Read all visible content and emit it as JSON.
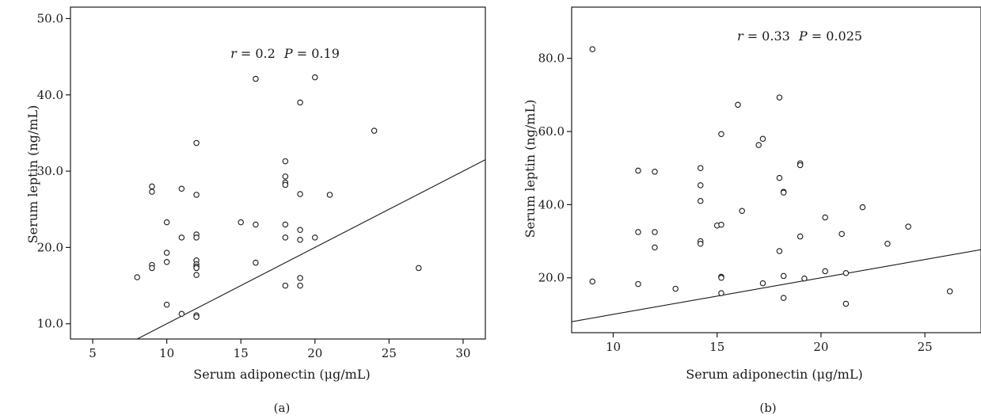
{
  "chart_data": [
    {
      "type": "scatter",
      "panel_label": "(a)",
      "annotation": {
        "r_label": "r",
        "r_value": "= 0.2",
        "p_label": "P",
        "p_value": "= 0.19"
      },
      "xlabel": "Serum adiponectin (μg/mL)",
      "ylabel": "Serum leptin (ng/mL)",
      "xlim": [
        3.5,
        31.5
      ],
      "ylim": [
        8.0,
        51.5
      ],
      "xticks": [
        5,
        10,
        15,
        20,
        25,
        30
      ],
      "yticks": [
        10.0,
        20.0,
        30.0,
        40.0,
        50.0
      ],
      "ytick_labels": [
        "10.0",
        "20.0",
        "30.0",
        "40.0",
        "50.0"
      ],
      "reference_line": "y = x",
      "grid": false,
      "points": [
        [
          8,
          16.1
        ],
        [
          9,
          28.0
        ],
        [
          9,
          27.3
        ],
        [
          9,
          17.7
        ],
        [
          9,
          17.3
        ],
        [
          10,
          23.3
        ],
        [
          10,
          19.3
        ],
        [
          10,
          18.1
        ],
        [
          10,
          12.5
        ],
        [
          11,
          27.7
        ],
        [
          11,
          21.3
        ],
        [
          11,
          11.3
        ],
        [
          12,
          33.7
        ],
        [
          12,
          26.9
        ],
        [
          12,
          21.7
        ],
        [
          12,
          21.3
        ],
        [
          12,
          18.3
        ],
        [
          12,
          17.8
        ],
        [
          12,
          17.5
        ],
        [
          12,
          17.3
        ],
        [
          12,
          16.4
        ],
        [
          12,
          11.1
        ],
        [
          12,
          10.9
        ],
        [
          15,
          23.3
        ],
        [
          16,
          42.1
        ],
        [
          16,
          23.0
        ],
        [
          16,
          18.0
        ],
        [
          18,
          31.3
        ],
        [
          18,
          29.3
        ],
        [
          18,
          28.5
        ],
        [
          18,
          28.2
        ],
        [
          18,
          23.0
        ],
        [
          18,
          21.3
        ],
        [
          18,
          15.0
        ],
        [
          19,
          39.0
        ],
        [
          19,
          27.0
        ],
        [
          19,
          22.3
        ],
        [
          19,
          21.0
        ],
        [
          19,
          16.0
        ],
        [
          19,
          15.0
        ],
        [
          20,
          42.3
        ],
        [
          20,
          21.3
        ],
        [
          21,
          26.9
        ],
        [
          24,
          35.3
        ],
        [
          27,
          17.3
        ]
      ]
    },
    {
      "type": "scatter",
      "panel_label": "(b)",
      "annotation": {
        "r_label": "r",
        "r_value": "= 0.33",
        "p_label": "P",
        "p_value": "= 0.025"
      },
      "xlabel": "Serum adiponectin (μg/mL)",
      "ylabel": "Serum leptin (ng/mL)",
      "xlim": [
        8.0,
        27.7
      ],
      "ylim": [
        5.0,
        94.0
      ],
      "xticks": [
        10,
        15,
        20,
        25
      ],
      "yticks": [
        20.0,
        40.0,
        60.0,
        80.0
      ],
      "ytick_labels": [
        "20.0",
        "40.0",
        "60.0",
        "80.0"
      ],
      "reference_line": "y = x",
      "grid": false,
      "points": [
        [
          9,
          82.5
        ],
        [
          9,
          19.0
        ],
        [
          11.2,
          49.3
        ],
        [
          11.2,
          32.5
        ],
        [
          11.2,
          18.3
        ],
        [
          12,
          49.0
        ],
        [
          12,
          32.5
        ],
        [
          12,
          28.3
        ],
        [
          13,
          17.0
        ],
        [
          14.2,
          50.0
        ],
        [
          14.2,
          45.3
        ],
        [
          14.2,
          41.0
        ],
        [
          14.2,
          30.0
        ],
        [
          14.2,
          29.3
        ],
        [
          15,
          34.3
        ],
        [
          15.2,
          59.3
        ],
        [
          15.2,
          34.5
        ],
        [
          15.2,
          20.3
        ],
        [
          15.2,
          20.0
        ],
        [
          15.2,
          15.8
        ],
        [
          16,
          67.3
        ],
        [
          16.2,
          38.3
        ],
        [
          17,
          56.3
        ],
        [
          17.2,
          58.0
        ],
        [
          17.2,
          18.5
        ],
        [
          18,
          69.3
        ],
        [
          18,
          47.3
        ],
        [
          18,
          27.3
        ],
        [
          18.2,
          43.5
        ],
        [
          18.2,
          43.3
        ],
        [
          18.2,
          20.5
        ],
        [
          18.2,
          14.5
        ],
        [
          19,
          51.3
        ],
        [
          19,
          50.8
        ],
        [
          19,
          31.3
        ],
        [
          19.2,
          19.8
        ],
        [
          20.2,
          36.5
        ],
        [
          20.2,
          21.8
        ],
        [
          21,
          32.0
        ],
        [
          21.2,
          21.3
        ],
        [
          21.2,
          12.9
        ],
        [
          22,
          39.3
        ],
        [
          23.2,
          29.3
        ],
        [
          24.2,
          34.0
        ],
        [
          26.2,
          16.3
        ]
      ]
    }
  ]
}
